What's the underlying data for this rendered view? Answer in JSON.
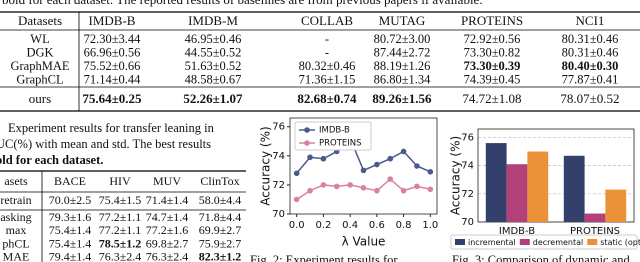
{
  "top_text": "bold for each dataset. The reported results of baselines are from previous papers if available.",
  "table1": {
    "header": [
      "Datasets",
      "IMDB-B",
      "IMDB-M",
      "COLLAB",
      "MUTAG",
      "PROTEINS",
      "NCI1"
    ],
    "rows": [
      {
        "cells": [
          "WL",
          "72.30±3.44",
          "46.95±0.46",
          "-",
          "80.72±3.00",
          "72.92±0.56",
          "80.31±0.46"
        ],
        "bold": []
      },
      {
        "cells": [
          "DGK",
          "66.96±0.56",
          "44.55±0.52",
          "-",
          "87.44±2.72",
          "73.30±0.82",
          "80.31±0.46"
        ],
        "bold": []
      },
      {
        "cells": [
          "GraphMAE",
          "75.52±0.66",
          "51.63±0.52",
          "80.32±0.46",
          "88.19±1.26",
          "73.30±0.39",
          "80.40±0.30"
        ],
        "bold": [
          5,
          6
        ]
      },
      {
        "cells": [
          "GraphCL",
          "71.14±0.44",
          "48.58±0.67",
          "71.36±1.15",
          "86.80±1.34",
          "74.39±0.45",
          "77.87±0.41"
        ],
        "bold": []
      }
    ],
    "ours": {
      "cells": [
        "ours",
        "75.64±0.25",
        "52.26±1.07",
        "82.68±0.74",
        "89.26±1.56",
        "74.72±1.08",
        "78.07±0.52"
      ],
      "bold": [
        1,
        2,
        3,
        4
      ]
    }
  },
  "caption_left": [
    "Experiment results for transfer leaning in",
    "UC(%) with mean and std. The best results",
    "old for each dataset."
  ],
  "table2": {
    "header": [
      "asets",
      "BACE",
      "HIV",
      "MUV",
      "ClinTox"
    ],
    "pretrain": {
      "cells": [
        "retrain",
        "70.0±2.5",
        "75.4±1.5",
        "71.4±1.4",
        "58.0±4.4"
      ],
      "bold": []
    },
    "rows": [
      {
        "cells": [
          "asking",
          "79.3±1.6",
          "77.2±1.1",
          "74.7±1.4",
          "71.8±4.4"
        ],
        "bold": []
      },
      {
        "cells": [
          "max",
          "75.4±1.4",
          "77.2±1.1",
          "77.2±1.6",
          "69.9±2.7"
        ],
        "bold": []
      },
      {
        "cells": [
          "phCL",
          "75.4±1.4",
          "78.5±1.2",
          "69.8±2.7",
          "75.9±2.7"
        ],
        "bold": [
          2
        ]
      },
      {
        "cells": [
          "MAE",
          "79.4±1.4",
          "76.3±2.4",
          "76.3±2.4",
          "82.3±1.2"
        ],
        "bold": [
          4
        ]
      }
    ]
  },
  "chart_data": [
    {
      "type": "line",
      "ylabel": "Accuracy (%)",
      "xlabel": "λ Value",
      "caption": "Fig. 2: Experiment results for",
      "x": [
        0,
        0.1,
        0.2,
        0.3,
        0.4,
        0.5,
        0.6,
        0.7,
        0.8,
        0.9,
        1.0
      ],
      "series": [
        {
          "name": "IMDB-B",
          "color": "#4a5a8a",
          "values": [
            72.8,
            73.9,
            73.8,
            74.3,
            75.2,
            73.0,
            73.4,
            73.8,
            74.3,
            73.3,
            72.9
          ]
        },
        {
          "name": "PROTEINS",
          "color": "#d9829f",
          "values": [
            71.0,
            71.6,
            72.0,
            71.9,
            72.0,
            71.8,
            71.6,
            72.4,
            71.6,
            71.9,
            71.7
          ]
        }
      ],
      "xlim": [
        -0.05,
        1.05
      ],
      "xticks": [
        {
          "value": 0,
          "label": "0.0"
        },
        0.2,
        0.4,
        0.6,
        0.8,
        {
          "value": 1.0,
          "label": "1.0"
        }
      ],
      "ylim": [
        70,
        76.6
      ],
      "yticks": [
        70,
        72,
        74,
        76
      ],
      "legend": "upper left"
    },
    {
      "type": "bar",
      "ylabel": "Accuracy (%)",
      "caption": "Fig. 3: Comparison of dynamic and",
      "categories": [
        "IMDB-B",
        "PROTEINS"
      ],
      "series": [
        {
          "name": "incremental",
          "color": "#34406c",
          "values": [
            75.6,
            74.7
          ]
        },
        {
          "name": "decremental",
          "color": "#b2417a",
          "values": [
            74.1,
            70.6
          ]
        },
        {
          "name": "static (optimal)",
          "color": "#ea913a",
          "values": [
            75.0,
            72.3
          ]
        }
      ],
      "ylim": [
        70,
        76.6
      ],
      "yticks": [
        70,
        72,
        74,
        76
      ],
      "grid": true,
      "legend": "lower center"
    }
  ]
}
